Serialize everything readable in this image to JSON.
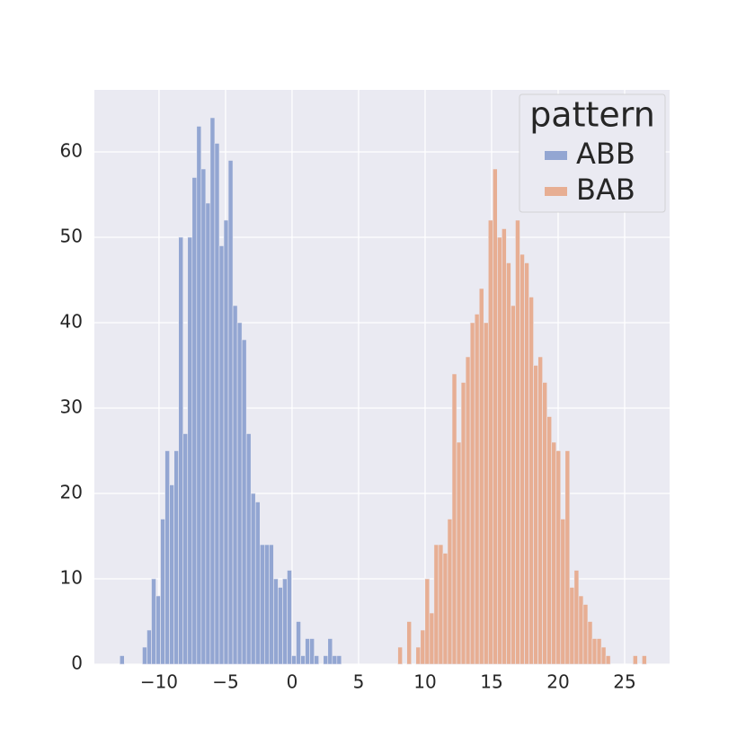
{
  "chart_data": {
    "type": "histogram",
    "series": [
      {
        "name": "ABB",
        "color": "#93a6d2",
        "bins": [
          -12.95,
          -12.61,
          -12.27,
          -11.93,
          -11.59,
          -11.25,
          -10.91,
          -10.57,
          -10.23,
          -9.89,
          -9.55,
          -9.21,
          -8.87,
          -8.53,
          -8.19,
          -7.85,
          -7.51,
          -7.17,
          -6.83,
          -6.49,
          -6.15,
          -5.81,
          -5.47,
          -5.13,
          -4.79,
          -4.45,
          -4.11,
          -3.77,
          -3.43,
          -3.09,
          -2.75,
          -2.41,
          -2.07,
          -1.73,
          -1.39,
          -1.05,
          -0.71,
          -0.37,
          -0.03,
          0.31,
          0.65,
          0.99,
          1.33,
          1.67,
          2.01,
          2.35,
          2.69,
          3.03,
          3.37,
          3.71
        ],
        "values": [
          1,
          0,
          0,
          0,
          0,
          2,
          4,
          10,
          8,
          17,
          25,
          21,
          25,
          50,
          27,
          50,
          57,
          63,
          58,
          54,
          64,
          61,
          49,
          52,
          59,
          42,
          40,
          38,
          27,
          20,
          19,
          14,
          14,
          14,
          10,
          9,
          10,
          11,
          1,
          5,
          1,
          3,
          3,
          1,
          0,
          1,
          3,
          1,
          1
        ]
      },
      {
        "name": "BAB",
        "color": "#e7ae93",
        "bins": [
          7.95,
          8.29,
          8.63,
          8.97,
          9.31,
          9.65,
          9.99,
          10.33,
          10.67,
          11.01,
          11.35,
          11.69,
          12.03,
          12.37,
          12.71,
          13.05,
          13.39,
          13.73,
          14.07,
          14.41,
          14.75,
          15.09,
          15.43,
          15.77,
          16.11,
          16.45,
          16.79,
          17.13,
          17.47,
          17.81,
          18.15,
          18.49,
          18.83,
          19.17,
          19.51,
          19.85,
          20.19,
          20.53,
          20.87,
          21.21,
          21.55,
          21.89,
          22.23,
          22.57,
          22.91,
          23.25,
          23.59,
          23.93,
          24.27,
          24.61,
          24.95,
          25.29,
          25.63,
          25.97,
          26.31,
          26.65
        ],
        "values": [
          2,
          0,
          5,
          0,
          2,
          4,
          10,
          6,
          14,
          14,
          13,
          17,
          34,
          26,
          33,
          36,
          40,
          41,
          44,
          40,
          52,
          58,
          50,
          51,
          47,
          42,
          52,
          48,
          47,
          43,
          35,
          36,
          33,
          29,
          26,
          25,
          17,
          25,
          9,
          11,
          8,
          7,
          5,
          3,
          3,
          2,
          1,
          0,
          0,
          0,
          0,
          0,
          1,
          0,
          1
        ]
      }
    ],
    "legend_title": "pattern",
    "legend": "upper right",
    "xlim": [
      -14.86,
      28.38
    ],
    "xticks": [
      {
        "value": -10,
        "label": "−10"
      },
      {
        "value": -5,
        "label": "−5"
      },
      0,
      5,
      10,
      15,
      20,
      25
    ],
    "ylim": [
      0,
      67.26
    ],
    "yticks": [
      0,
      10,
      20,
      30,
      40,
      50,
      60
    ],
    "grid": true
  }
}
